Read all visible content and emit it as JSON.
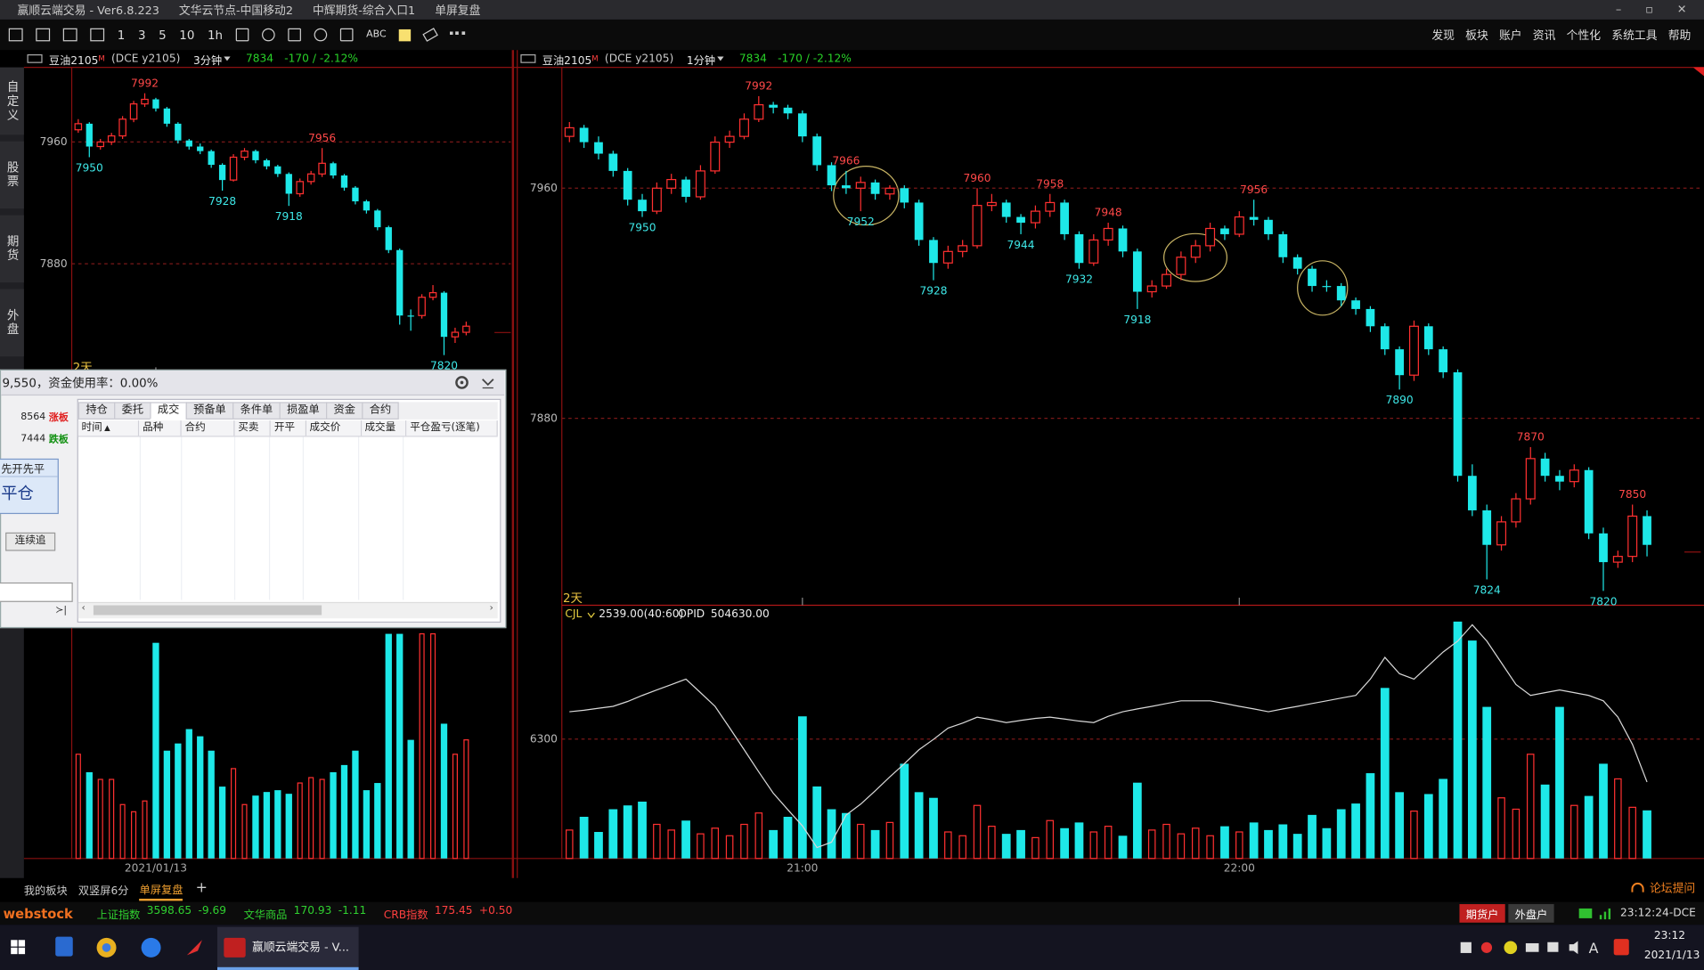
{
  "window": {
    "app_title": "赢顺云端交易 - Ver6.8.223",
    "node": "文华云节点-中国移动2",
    "broker": "中辉期货-综合入口1",
    "mode": "单屏复盘"
  },
  "toolbar": {
    "periods": [
      "1",
      "3",
      "5",
      "10",
      "1h"
    ],
    "text_tool": "ABC",
    "menu": [
      "发现",
      "板块",
      "账户",
      "资讯",
      "个性化",
      "系统工具",
      "帮助"
    ]
  },
  "side_tabs": [
    "自定义",
    "股票",
    "期货",
    "外盘"
  ],
  "chart_data": [
    {
      "type": "candlestick",
      "symbol": "豆油2105",
      "symbol_mark": "M",
      "contract": "(DCE y2105)",
      "period": "3分钟",
      "last": "7834",
      "change": "-170 / -2.12%",
      "ylim": [
        7807,
        8009
      ],
      "yticks": [
        7960,
        7880
      ],
      "grid": true,
      "range_label": "2天",
      "xticks": [
        {
          "value": 7,
          "label": "2021/01/13"
        }
      ],
      "candles": [
        [
          7968,
          7975,
          7966,
          7972
        ],
        [
          7972,
          7973,
          7950,
          7957
        ],
        [
          7957,
          7962,
          7955,
          7960
        ],
        [
          7960,
          7966,
          7958,
          7964
        ],
        [
          7964,
          7977,
          7962,
          7975
        ],
        [
          7975,
          7987,
          7973,
          7985
        ],
        [
          7985,
          7992,
          7983,
          7988
        ],
        [
          7988,
          7989,
          7980,
          7982
        ],
        [
          7982,
          7983,
          7970,
          7972
        ],
        [
          7972,
          7973,
          7959,
          7961
        ],
        [
          7961,
          7962,
          7955,
          7957
        ],
        [
          7957,
          7959,
          7952,
          7954
        ],
        [
          7954,
          7955,
          7943,
          7945
        ],
        [
          7945,
          7946,
          7928,
          7935
        ],
        [
          7935,
          7952,
          7934,
          7950
        ],
        [
          7950,
          7956,
          7948,
          7954
        ],
        [
          7954,
          7955,
          7946,
          7948
        ],
        [
          7948,
          7949,
          7942,
          7944
        ],
        [
          7944,
          7945,
          7937,
          7939
        ],
        [
          7939,
          7940,
          7918,
          7926
        ],
        [
          7926,
          7936,
          7924,
          7934
        ],
        [
          7934,
          7941,
          7932,
          7939
        ],
        [
          7939,
          7956,
          7937,
          7946
        ],
        [
          7946,
          7947,
          7936,
          7938
        ],
        [
          7938,
          7939,
          7928,
          7930
        ],
        [
          7930,
          7931,
          7919,
          7921
        ],
        [
          7921,
          7922,
          7913,
          7915
        ],
        [
          7915,
          7916,
          7902,
          7904
        ],
        [
          7904,
          7905,
          7887,
          7889
        ],
        [
          7889,
          7890,
          7840,
          7846
        ],
        [
          7846,
          7850,
          7836,
          7846
        ],
        [
          7846,
          7860,
          7844,
          7858
        ],
        [
          7858,
          7866,
          7856,
          7861
        ],
        [
          7861,
          7862,
          7820,
          7832
        ],
        [
          7832,
          7838,
          7828,
          7835
        ],
        [
          7835,
          7842,
          7833,
          7839
        ]
      ],
      "annotations": [
        {
          "x": 6,
          "value": 7992
        },
        {
          "x": 1,
          "value": 7950
        },
        {
          "x": 13,
          "value": 7928
        },
        {
          "x": 22,
          "value": 7956
        },
        {
          "x": 19,
          "value": 7918
        },
        {
          "x": 33,
          "value": 7820
        }
      ],
      "volume": {
        "ylim": [
          0,
          13000
        ],
        "values": [
          5800,
          4800,
          4400,
          4400,
          3000,
          2600,
          3200,
          12000,
          6000,
          6400,
          7200,
          6800,
          6000,
          4000,
          5000,
          3000,
          3500,
          3700,
          3800,
          3600,
          4200,
          4500,
          4400,
          4800,
          5200,
          6000,
          3800,
          4200,
          12500,
          12500,
          6600,
          12500,
          12500,
          7500,
          5800,
          6600
        ]
      }
    },
    {
      "type": "candlestick",
      "symbol": "豆油2105",
      "symbol_mark": "M",
      "contract": "(DCE y2105)",
      "period": "1分钟",
      "last": "7834",
      "change": "-170 / -2.12%",
      "ylim": [
        7815,
        8002
      ],
      "yticks": [
        7960,
        7880
      ],
      "grid": true,
      "range_label": "2天",
      "xticks": [
        {
          "value": 16,
          "label": "21:00"
        },
        {
          "value": 46,
          "label": "22:00"
        }
      ],
      "candles": [
        [
          7978,
          7983,
          7976,
          7981
        ],
        [
          7981,
          7982,
          7974,
          7976
        ],
        [
          7976,
          7978,
          7970,
          7972
        ],
        [
          7972,
          7973,
          7964,
          7966
        ],
        [
          7966,
          7967,
          7954,
          7956
        ],
        [
          7956,
          7958,
          7950,
          7952
        ],
        [
          7952,
          7962,
          7951,
          7960
        ],
        [
          7960,
          7965,
          7958,
          7963
        ],
        [
          7963,
          7964,
          7955,
          7957
        ],
        [
          7957,
          7968,
          7956,
          7966
        ],
        [
          7966,
          7978,
          7965,
          7976
        ],
        [
          7976,
          7980,
          7974,
          7978
        ],
        [
          7978,
          7986,
          7977,
          7984
        ],
        [
          7984,
          7992,
          7983,
          7989
        ],
        [
          7989,
          7990,
          7986,
          7988
        ],
        [
          7988,
          7989,
          7984,
          7986
        ],
        [
          7986,
          7987,
          7976,
          7978
        ],
        [
          7978,
          7979,
          7966,
          7968
        ],
        [
          7968,
          7969,
          7959,
          7961
        ],
        [
          7961,
          7966,
          7958,
          7960
        ],
        [
          7960,
          7964,
          7952,
          7962
        ],
        [
          7962,
          7963,
          7956,
          7958
        ],
        [
          7958,
          7961,
          7956,
          7960
        ],
        [
          7960,
          7961,
          7953,
          7955
        ],
        [
          7955,
          7956,
          7940,
          7942
        ],
        [
          7942,
          7943,
          7928,
          7934
        ],
        [
          7934,
          7940,
          7932,
          7938
        ],
        [
          7938,
          7942,
          7936,
          7940
        ],
        [
          7940,
          7960,
          7939,
          7954
        ],
        [
          7954,
          7958,
          7952,
          7955
        ],
        [
          7955,
          7956,
          7948,
          7950
        ],
        [
          7950,
          7951,
          7944,
          7948
        ],
        [
          7948,
          7954,
          7946,
          7952
        ],
        [
          7952,
          7958,
          7950,
          7955
        ],
        [
          7955,
          7956,
          7942,
          7944
        ],
        [
          7944,
          7945,
          7932,
          7934
        ],
        [
          7934,
          7944,
          7933,
          7942
        ],
        [
          7942,
          7948,
          7940,
          7946
        ],
        [
          7946,
          7947,
          7936,
          7938
        ],
        [
          7938,
          7939,
          7918,
          7924
        ],
        [
          7924,
          7928,
          7922,
          7926
        ],
        [
          7926,
          7932,
          7925,
          7930
        ],
        [
          7930,
          7938,
          7928,
          7936
        ],
        [
          7936,
          7942,
          7934,
          7940
        ],
        [
          7940,
          7948,
          7938,
          7946
        ],
        [
          7946,
          7947,
          7942,
          7944
        ],
        [
          7944,
          7952,
          7943,
          7950
        ],
        [
          7950,
          7956,
          7947,
          7949
        ],
        [
          7949,
          7950,
          7942,
          7944
        ],
        [
          7944,
          7945,
          7934,
          7936
        ],
        [
          7936,
          7937,
          7930,
          7932
        ],
        [
          7932,
          7933,
          7924,
          7926
        ],
        [
          7926,
          7928,
          7924,
          7926
        ],
        [
          7926,
          7927,
          7919,
          7921
        ],
        [
          7921,
          7922,
          7916,
          7918
        ],
        [
          7918,
          7919,
          7910,
          7912
        ],
        [
          7912,
          7913,
          7902,
          7904
        ],
        [
          7904,
          7905,
          7890,
          7895
        ],
        [
          7895,
          7914,
          7893,
          7912
        ],
        [
          7912,
          7913,
          7902,
          7904
        ],
        [
          7904,
          7905,
          7894,
          7896
        ],
        [
          7896,
          7897,
          7858,
          7860
        ],
        [
          7860,
          7864,
          7846,
          7848
        ],
        [
          7848,
          7850,
          7824,
          7836
        ],
        [
          7836,
          7846,
          7834,
          7844
        ],
        [
          7844,
          7854,
          7842,
          7852
        ],
        [
          7852,
          7870,
          7850,
          7866
        ],
        [
          7866,
          7868,
          7858,
          7860
        ],
        [
          7860,
          7862,
          7855,
          7858
        ],
        [
          7858,
          7864,
          7856,
          7862
        ],
        [
          7862,
          7863,
          7838,
          7840
        ],
        [
          7840,
          7842,
          7820,
          7830
        ],
        [
          7830,
          7834,
          7828,
          7832
        ],
        [
          7832,
          7850,
          7830,
          7846
        ],
        [
          7846,
          7848,
          7832,
          7836
        ]
      ],
      "annotations": [
        {
          "x": 13,
          "value": 7992
        },
        {
          "x": 5,
          "value": 7950
        },
        {
          "x": 19,
          "value": 7966
        },
        {
          "x": 20,
          "value": 7952
        },
        {
          "x": 25,
          "value": 7928
        },
        {
          "x": 28,
          "value": 7960
        },
        {
          "x": 31,
          "value": 7944
        },
        {
          "x": 33,
          "value": 7958
        },
        {
          "x": 35,
          "value": 7932
        },
        {
          "x": 37,
          "value": 7948
        },
        {
          "x": 39,
          "value": 7918
        },
        {
          "x": 47,
          "value": 7956
        },
        {
          "x": 57,
          "value": 7890
        },
        {
          "x": 66,
          "value": 7870
        },
        {
          "x": 63,
          "value": 7824
        },
        {
          "x": 73,
          "value": 7850
        },
        {
          "x": 71,
          "value": 7820
        }
      ],
      "volume": {
        "name": "CJL",
        "readout": "2539.00(40:60)",
        "ylim": [
          0,
          12500
        ],
        "yticks": [
          6300
        ],
        "values": [
          1500,
          2200,
          1400,
          2600,
          2800,
          3000,
          1800,
          1500,
          2000,
          1300,
          1600,
          1200,
          1800,
          2400,
          1500,
          2200,
          7500,
          3800,
          2600,
          2400,
          1800,
          1500,
          1900,
          5000,
          3500,
          3200,
          1400,
          1200,
          2800,
          1700,
          1300,
          1500,
          1100,
          2000,
          1600,
          1900,
          1400,
          1700,
          1200,
          4000,
          1500,
          1800,
          1300,
          1600,
          1200,
          1700,
          1400,
          1900,
          1500,
          1800,
          1300,
          2300,
          1600,
          2600,
          2900,
          4500,
          9000,
          3500,
          2500,
          3400,
          4200,
          12500,
          11500,
          8000,
          3200,
          2600,
          5500,
          3900,
          8000,
          2800,
          3300,
          5000,
          4200,
          2700,
          2539
        ]
      },
      "open_interest": {
        "name": "OPID",
        "readout": "504630.00",
        "color": "#d8d8d8",
        "y2lim": [
          503500,
          507000
        ],
        "values": [
          505668,
          505690,
          505720,
          505748,
          505820,
          505909,
          505990,
          506070,
          506150,
          505950,
          505748,
          505430,
          505106,
          504780,
          504464,
          504220,
          503982,
          503661,
          503741,
          504142,
          504303,
          504500,
          504705,
          504900,
          505106,
          505260,
          505427,
          505500,
          505588,
          505550,
          505508,
          505540,
          505570,
          505588,
          505560,
          505530,
          505508,
          505600,
          505668,
          505710,
          505748,
          505790,
          505829,
          505829,
          505829,
          505790,
          505748,
          505710,
          505668,
          505710,
          505748,
          505790,
          505829,
          505870,
          505909,
          506150,
          506471,
          506230,
          506150,
          506350,
          506551,
          506712,
          506953,
          506712,
          506391,
          506070,
          505909,
          505950,
          505990,
          505950,
          505909,
          505829,
          505588,
          505186,
          504630
        ]
      }
    }
  ],
  "trade_panel": {
    "account_summary": "9,550，资金使用率：0.00%",
    "limit_up": {
      "price": "8564",
      "label": "涨板"
    },
    "limit_down": {
      "price": "7444",
      "label": "跌板"
    },
    "close_mode": "先开先平",
    "close_button": "平仓",
    "chase_button": "连续追",
    "tabs": [
      "持仓",
      "委托",
      "成交",
      "预备单",
      "条件单",
      "损盈单",
      "资金",
      "合约"
    ],
    "active_tab": 2,
    "columns": [
      "时间",
      "品种",
      "合约",
      "买卖",
      "开平",
      "成交价",
      "成交量",
      "平仓盈亏(逐笔)"
    ]
  },
  "bottom_tabs": {
    "items": [
      "我的板块",
      "双竖屏6分",
      "单屏复盘"
    ],
    "active": 2
  },
  "status_bar": {
    "brand": "webstock",
    "indices": [
      {
        "name": "上证指数",
        "value": "3598.65",
        "change": "-9.69"
      },
      {
        "name": "文华商品",
        "value": "170.93",
        "change": "-1.11"
      },
      {
        "name": "CRB指数",
        "value": "175.45",
        "change": "+0.50"
      }
    ],
    "accounts": [
      "期货户",
      "外盘户"
    ],
    "clock": "23:12:24-DCE",
    "forum": "论坛提问"
  },
  "taskbar": {
    "app": "赢顺云端交易 - V...",
    "time": "23:12",
    "date": "2021/1/13"
  }
}
